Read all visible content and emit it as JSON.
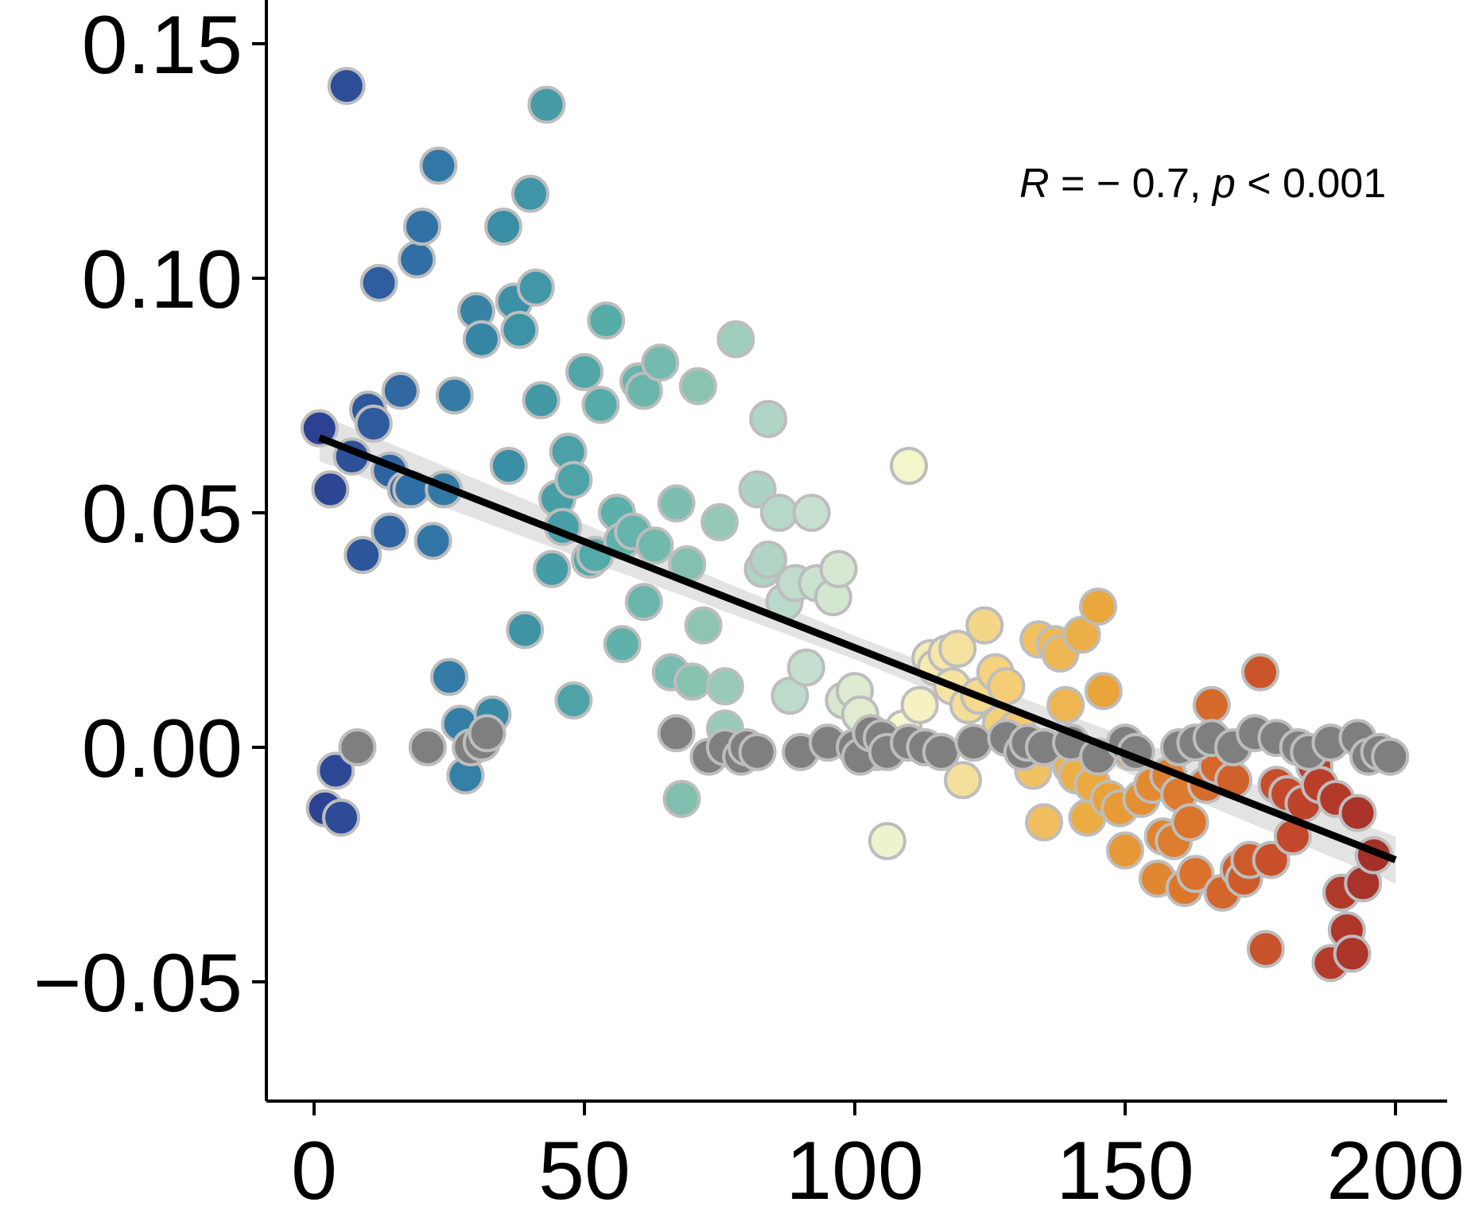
{
  "chart_data": {
    "type": "scatter",
    "xlim": [
      -8,
      210
    ],
    "ylim": [
      -0.075,
      0.16
    ],
    "x_ticks": [
      0,
      50,
      100,
      150,
      200
    ],
    "x_tick_labels": [
      "0",
      "50",
      "100",
      "150",
      "200"
    ],
    "y_ticks": [
      -0.05,
      0,
      0.05,
      0.1,
      0.15
    ],
    "y_tick_labels": [
      "−0.05",
      "0.00",
      "0.05",
      "0.10",
      "0.15"
    ],
    "grid": false,
    "annotation": {
      "r_symbol": "R",
      "r_text": " = − 0.7, ",
      "p_symbol": "p",
      "p_text": " < 0.001"
    },
    "regression": {
      "x_start": 1,
      "y_start": 0.066,
      "x_end": 200,
      "y_end": -0.024,
      "ci_half_width_start": 0.005,
      "ci_half_width_mid": 0.0025,
      "ci_half_width_end": 0.005,
      "line_color": "#000000",
      "band_color": "#d9d9d9"
    },
    "colors": {
      "point_stroke": "#bdbdbd",
      "gray_point": "#7f7f7f",
      "scale": [
        "#2c3e90",
        "#2f6ea6",
        "#3a8fa5",
        "#57aea8",
        "#8fc5b3",
        "#c5dfd0",
        "#f5f7cf",
        "#f4cf78",
        "#eaa63a",
        "#d9702a",
        "#c2452a",
        "#9b2a2a"
      ]
    },
    "points": [
      [
        1,
        0.068,
        "c"
      ],
      [
        3,
        0.055,
        "c"
      ],
      [
        2,
        -0.013,
        "c"
      ],
      [
        4,
        -0.005,
        "c"
      ],
      [
        5,
        -0.015,
        "c"
      ],
      [
        6,
        0.141,
        "c"
      ],
      [
        7,
        0.062,
        "c"
      ],
      [
        9,
        0.041,
        "c"
      ],
      [
        10,
        0.072,
        "c"
      ],
      [
        11,
        0.069,
        "c"
      ],
      [
        12,
        0.099,
        "c"
      ],
      [
        14,
        0.059,
        "c"
      ],
      [
        14,
        0.046,
        "c"
      ],
      [
        16,
        0.076,
        "c"
      ],
      [
        17,
        0.055,
        "c"
      ],
      [
        18,
        0.055,
        "c"
      ],
      [
        19,
        0.104,
        "c"
      ],
      [
        20,
        0.111,
        "c"
      ],
      [
        22,
        0.044,
        "c"
      ],
      [
        23,
        0.124,
        "c"
      ],
      [
        24,
        0.055,
        "c"
      ],
      [
        25,
        0.015,
        "c"
      ],
      [
        26,
        0.075,
        "c"
      ],
      [
        27,
        0.005,
        "c"
      ],
      [
        28,
        -0.006,
        "c"
      ],
      [
        30,
        0.093,
        "c"
      ],
      [
        31,
        0.087,
        "c"
      ],
      [
        33,
        0.007,
        "c"
      ],
      [
        35,
        0.111,
        "c"
      ],
      [
        36,
        0.06,
        "c"
      ],
      [
        37,
        0.095,
        "c"
      ],
      [
        38,
        0.089,
        "c"
      ],
      [
        39,
        0.025,
        "c"
      ],
      [
        40,
        0.118,
        "c"
      ],
      [
        41,
        0.098,
        "c"
      ],
      [
        42,
        0.074,
        "c"
      ],
      [
        43,
        0.137,
        "c"
      ],
      [
        44,
        0.038,
        "c"
      ],
      [
        45,
        0.053,
        "c"
      ],
      [
        46,
        0.047,
        "c"
      ],
      [
        47,
        0.063,
        "c"
      ],
      [
        48,
        0.057,
        "c"
      ],
      [
        48,
        0.01,
        "c"
      ],
      [
        50,
        0.08,
        "c"
      ],
      [
        51,
        0.04,
        "c"
      ],
      [
        52,
        0.041,
        "c"
      ],
      [
        53,
        0.073,
        "c"
      ],
      [
        54,
        0.091,
        "c"
      ],
      [
        56,
        0.05,
        "c"
      ],
      [
        57,
        0.044,
        "c"
      ],
      [
        57,
        0.022,
        "c"
      ],
      [
        59,
        0.046,
        "c"
      ],
      [
        60,
        0.078,
        "c"
      ],
      [
        61,
        0.076,
        "c"
      ],
      [
        61,
        0.031,
        "c"
      ],
      [
        63,
        0.043,
        "c"
      ],
      [
        64,
        0.082,
        "c"
      ],
      [
        66,
        0.016,
        "c"
      ],
      [
        67,
        0.052,
        "c"
      ],
      [
        68,
        -0.011,
        "c"
      ],
      [
        69,
        0.039,
        "c"
      ],
      [
        70,
        0.014,
        "c"
      ],
      [
        71,
        0.077,
        "c"
      ],
      [
        72,
        0.026,
        "c"
      ],
      [
        75,
        0.048,
        "c"
      ],
      [
        76,
        0.004,
        "c"
      ],
      [
        76,
        0.013,
        "c"
      ],
      [
        78,
        0.087,
        "c"
      ],
      [
        84,
        0.07,
        "c"
      ],
      [
        82,
        0.055,
        "c"
      ],
      [
        83,
        0.038,
        "c"
      ],
      [
        84,
        0.04,
        "c"
      ],
      [
        86,
        0.05,
        "c"
      ],
      [
        87,
        0.031,
        "c"
      ],
      [
        88,
        0.011,
        "c"
      ],
      [
        89,
        0.035,
        "c"
      ],
      [
        91,
        0.017,
        "c"
      ],
      [
        92,
        0.05,
        "c"
      ],
      [
        93,
        0.035,
        "c"
      ],
      [
        96,
        0.032,
        "c"
      ],
      [
        97,
        0.038,
        "c"
      ],
      [
        98,
        0.01,
        "c"
      ],
      [
        100,
        0.012,
        "c"
      ],
      [
        101,
        0.007,
        "c"
      ],
      [
        104,
        -0.001,
        "c"
      ],
      [
        106,
        -0.02,
        "c"
      ],
      [
        109,
        0.004,
        "c"
      ],
      [
        110,
        0.06,
        "c"
      ],
      [
        112,
        0.009,
        "c"
      ],
      [
        114,
        0.019,
        "c"
      ],
      [
        115,
        0.017,
        "c"
      ],
      [
        117,
        0.02,
        "c"
      ],
      [
        118,
        0.013,
        "c"
      ],
      [
        119,
        0.021,
        "c"
      ],
      [
        120,
        -0.007,
        "c"
      ],
      [
        121,
        0.009,
        "c"
      ],
      [
        123,
        0.011,
        "c"
      ],
      [
        124,
        0.026,
        "c"
      ],
      [
        126,
        0.016,
        "c"
      ],
      [
        127,
        0.005,
        "c"
      ],
      [
        128,
        0.013,
        "c"
      ],
      [
        130,
        0.004,
        "c"
      ],
      [
        133,
        -0.005,
        "c"
      ],
      [
        134,
        0.023,
        "c"
      ],
      [
        135,
        -0.016,
        "c"
      ],
      [
        137,
        0.022,
        "c"
      ],
      [
        138,
        0.02,
        "c"
      ],
      [
        139,
        0.009,
        "c"
      ],
      [
        140,
        -0.004,
        "c"
      ],
      [
        141,
        -0.006,
        "c"
      ],
      [
        142,
        0.024,
        "c"
      ],
      [
        143,
        -0.015,
        "c"
      ],
      [
        144,
        -0.008,
        "c"
      ],
      [
        145,
        0.03,
        "c"
      ],
      [
        146,
        0.012,
        "c"
      ],
      [
        147,
        -0.011,
        "c"
      ],
      [
        149,
        -0.013,
        "c"
      ],
      [
        150,
        -0.022,
        "c"
      ],
      [
        151,
        -0.001,
        "c"
      ],
      [
        153,
        -0.011,
        "c"
      ],
      [
        155,
        -0.008,
        "c"
      ],
      [
        156,
        -0.028,
        "c"
      ],
      [
        157,
        -0.019,
        "c"
      ],
      [
        158,
        -0.006,
        "c"
      ],
      [
        159,
        -0.02,
        "c"
      ],
      [
        160,
        -0.01,
        "c"
      ],
      [
        161,
        -0.03,
        "c"
      ],
      [
        162,
        -0.016,
        "c"
      ],
      [
        163,
        -0.027,
        "c"
      ],
      [
        165,
        -0.008,
        "c"
      ],
      [
        166,
        0.009,
        "c"
      ],
      [
        167,
        -0.004,
        "c"
      ],
      [
        168,
        -0.031,
        "c"
      ],
      [
        170,
        -0.007,
        "c"
      ],
      [
        171,
        -0.026,
        "c"
      ],
      [
        172,
        -0.028,
        "c"
      ],
      [
        173,
        -0.024,
        "c"
      ],
      [
        175,
        0.016,
        "c"
      ],
      [
        176,
        -0.043,
        "c"
      ],
      [
        177,
        -0.024,
        "c"
      ],
      [
        178,
        -0.008,
        "c"
      ],
      [
        180,
        -0.01,
        "c"
      ],
      [
        181,
        -0.019,
        "c"
      ],
      [
        183,
        -0.012,
        "c"
      ],
      [
        185,
        -0.004,
        "c"
      ],
      [
        186,
        -0.008,
        "c"
      ],
      [
        188,
        -0.046,
        "c"
      ],
      [
        189,
        -0.011,
        "c"
      ],
      [
        190,
        -0.031,
        "c"
      ],
      [
        191,
        -0.039,
        "c"
      ],
      [
        192,
        -0.044,
        "c"
      ],
      [
        193,
        -0.014,
        "c"
      ],
      [
        194,
        -0.029,
        "c"
      ],
      [
        196,
        -0.023,
        "c"
      ],
      [
        8,
        0.0,
        "g"
      ],
      [
        21,
        0.0,
        "g"
      ],
      [
        29,
        0.0,
        "g"
      ],
      [
        31,
        0.001,
        "g"
      ],
      [
        32,
        0.003,
        "g"
      ],
      [
        67,
        0.003,
        "g"
      ],
      [
        73,
        -0.002,
        "g"
      ],
      [
        76,
        0.0,
        "g"
      ],
      [
        79,
        -0.002,
        "g"
      ],
      [
        80,
        0.0,
        "g"
      ],
      [
        82,
        -0.001,
        "g"
      ],
      [
        90,
        -0.001,
        "g"
      ],
      [
        95,
        0.001,
        "g"
      ],
      [
        100,
        0.0,
        "g"
      ],
      [
        101,
        -0.002,
        "g"
      ],
      [
        103,
        0.003,
        "g"
      ],
      [
        105,
        0.002,
        "g"
      ],
      [
        106,
        -0.001,
        "g"
      ],
      [
        110,
        0.001,
        "g"
      ],
      [
        113,
        0.0,
        "g"
      ],
      [
        116,
        -0.001,
        "g"
      ],
      [
        122,
        0.001,
        "g"
      ],
      [
        128,
        0.002,
        "g"
      ],
      [
        131,
        -0.001,
        "g"
      ],
      [
        132,
        0.001,
        "g"
      ],
      [
        135,
        0.0,
        "g"
      ],
      [
        140,
        0.001,
        "g"
      ],
      [
        145,
        -0.002,
        "g"
      ],
      [
        150,
        0.001,
        "g"
      ],
      [
        152,
        -0.001,
        "g"
      ],
      [
        160,
        0.0,
        "g"
      ],
      [
        163,
        0.001,
        "g"
      ],
      [
        166,
        0.002,
        "g"
      ],
      [
        170,
        0.0,
        "g"
      ],
      [
        174,
        0.003,
        "g"
      ],
      [
        178,
        0.002,
        "g"
      ],
      [
        182,
        0.0,
        "g"
      ],
      [
        184,
        -0.001,
        "g"
      ],
      [
        188,
        0.001,
        "g"
      ],
      [
        193,
        0.002,
        "g"
      ],
      [
        195,
        -0.002,
        "g"
      ],
      [
        197,
        -0.001,
        "g"
      ],
      [
        199,
        -0.002,
        "g"
      ]
    ]
  }
}
